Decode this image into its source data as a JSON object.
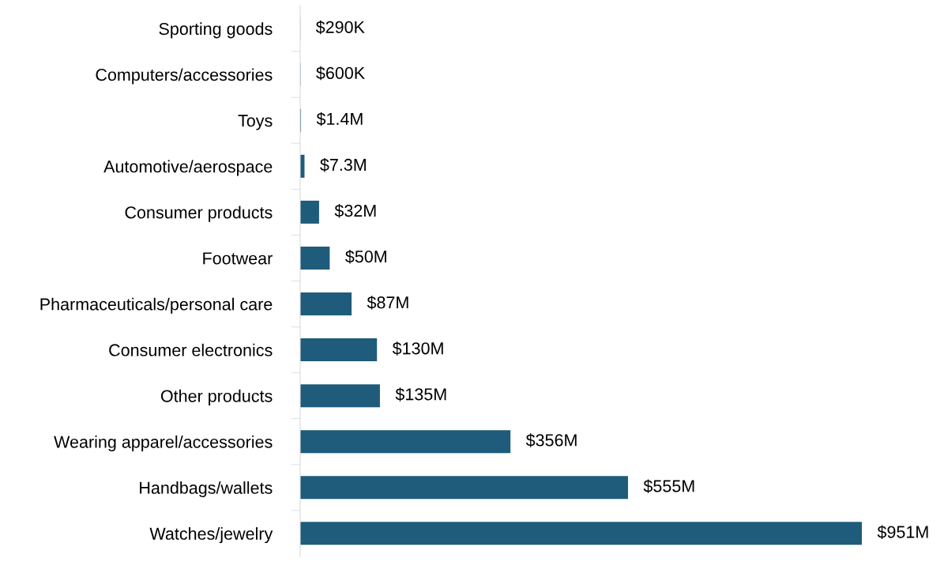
{
  "chart_data": {
    "type": "bar",
    "orientation": "horizontal",
    "categories": [
      "Sporting goods",
      "Computers/accessories",
      "Toys",
      "Automotive/aerospace",
      "Consumer products",
      "Footwear",
      "Pharmaceuticals/personal care",
      "Consumer electronics",
      "Other products",
      "Wearing apparel/accessories",
      "Handbags/wallets",
      "Watches/jewelry"
    ],
    "values": [
      290000,
      600000,
      1400000,
      7300000,
      32000000,
      50000000,
      87000000,
      130000000,
      135000000,
      356000000,
      555000000,
      951000000
    ],
    "value_labels": [
      "$290K",
      "$600K",
      "$1.4M",
      "$7.3M",
      "$32M",
      "$50M",
      "$87M",
      "$130M",
      "$135M",
      "$356M",
      "$555M",
      "$951M"
    ],
    "color": "#1f5b7b"
  }
}
